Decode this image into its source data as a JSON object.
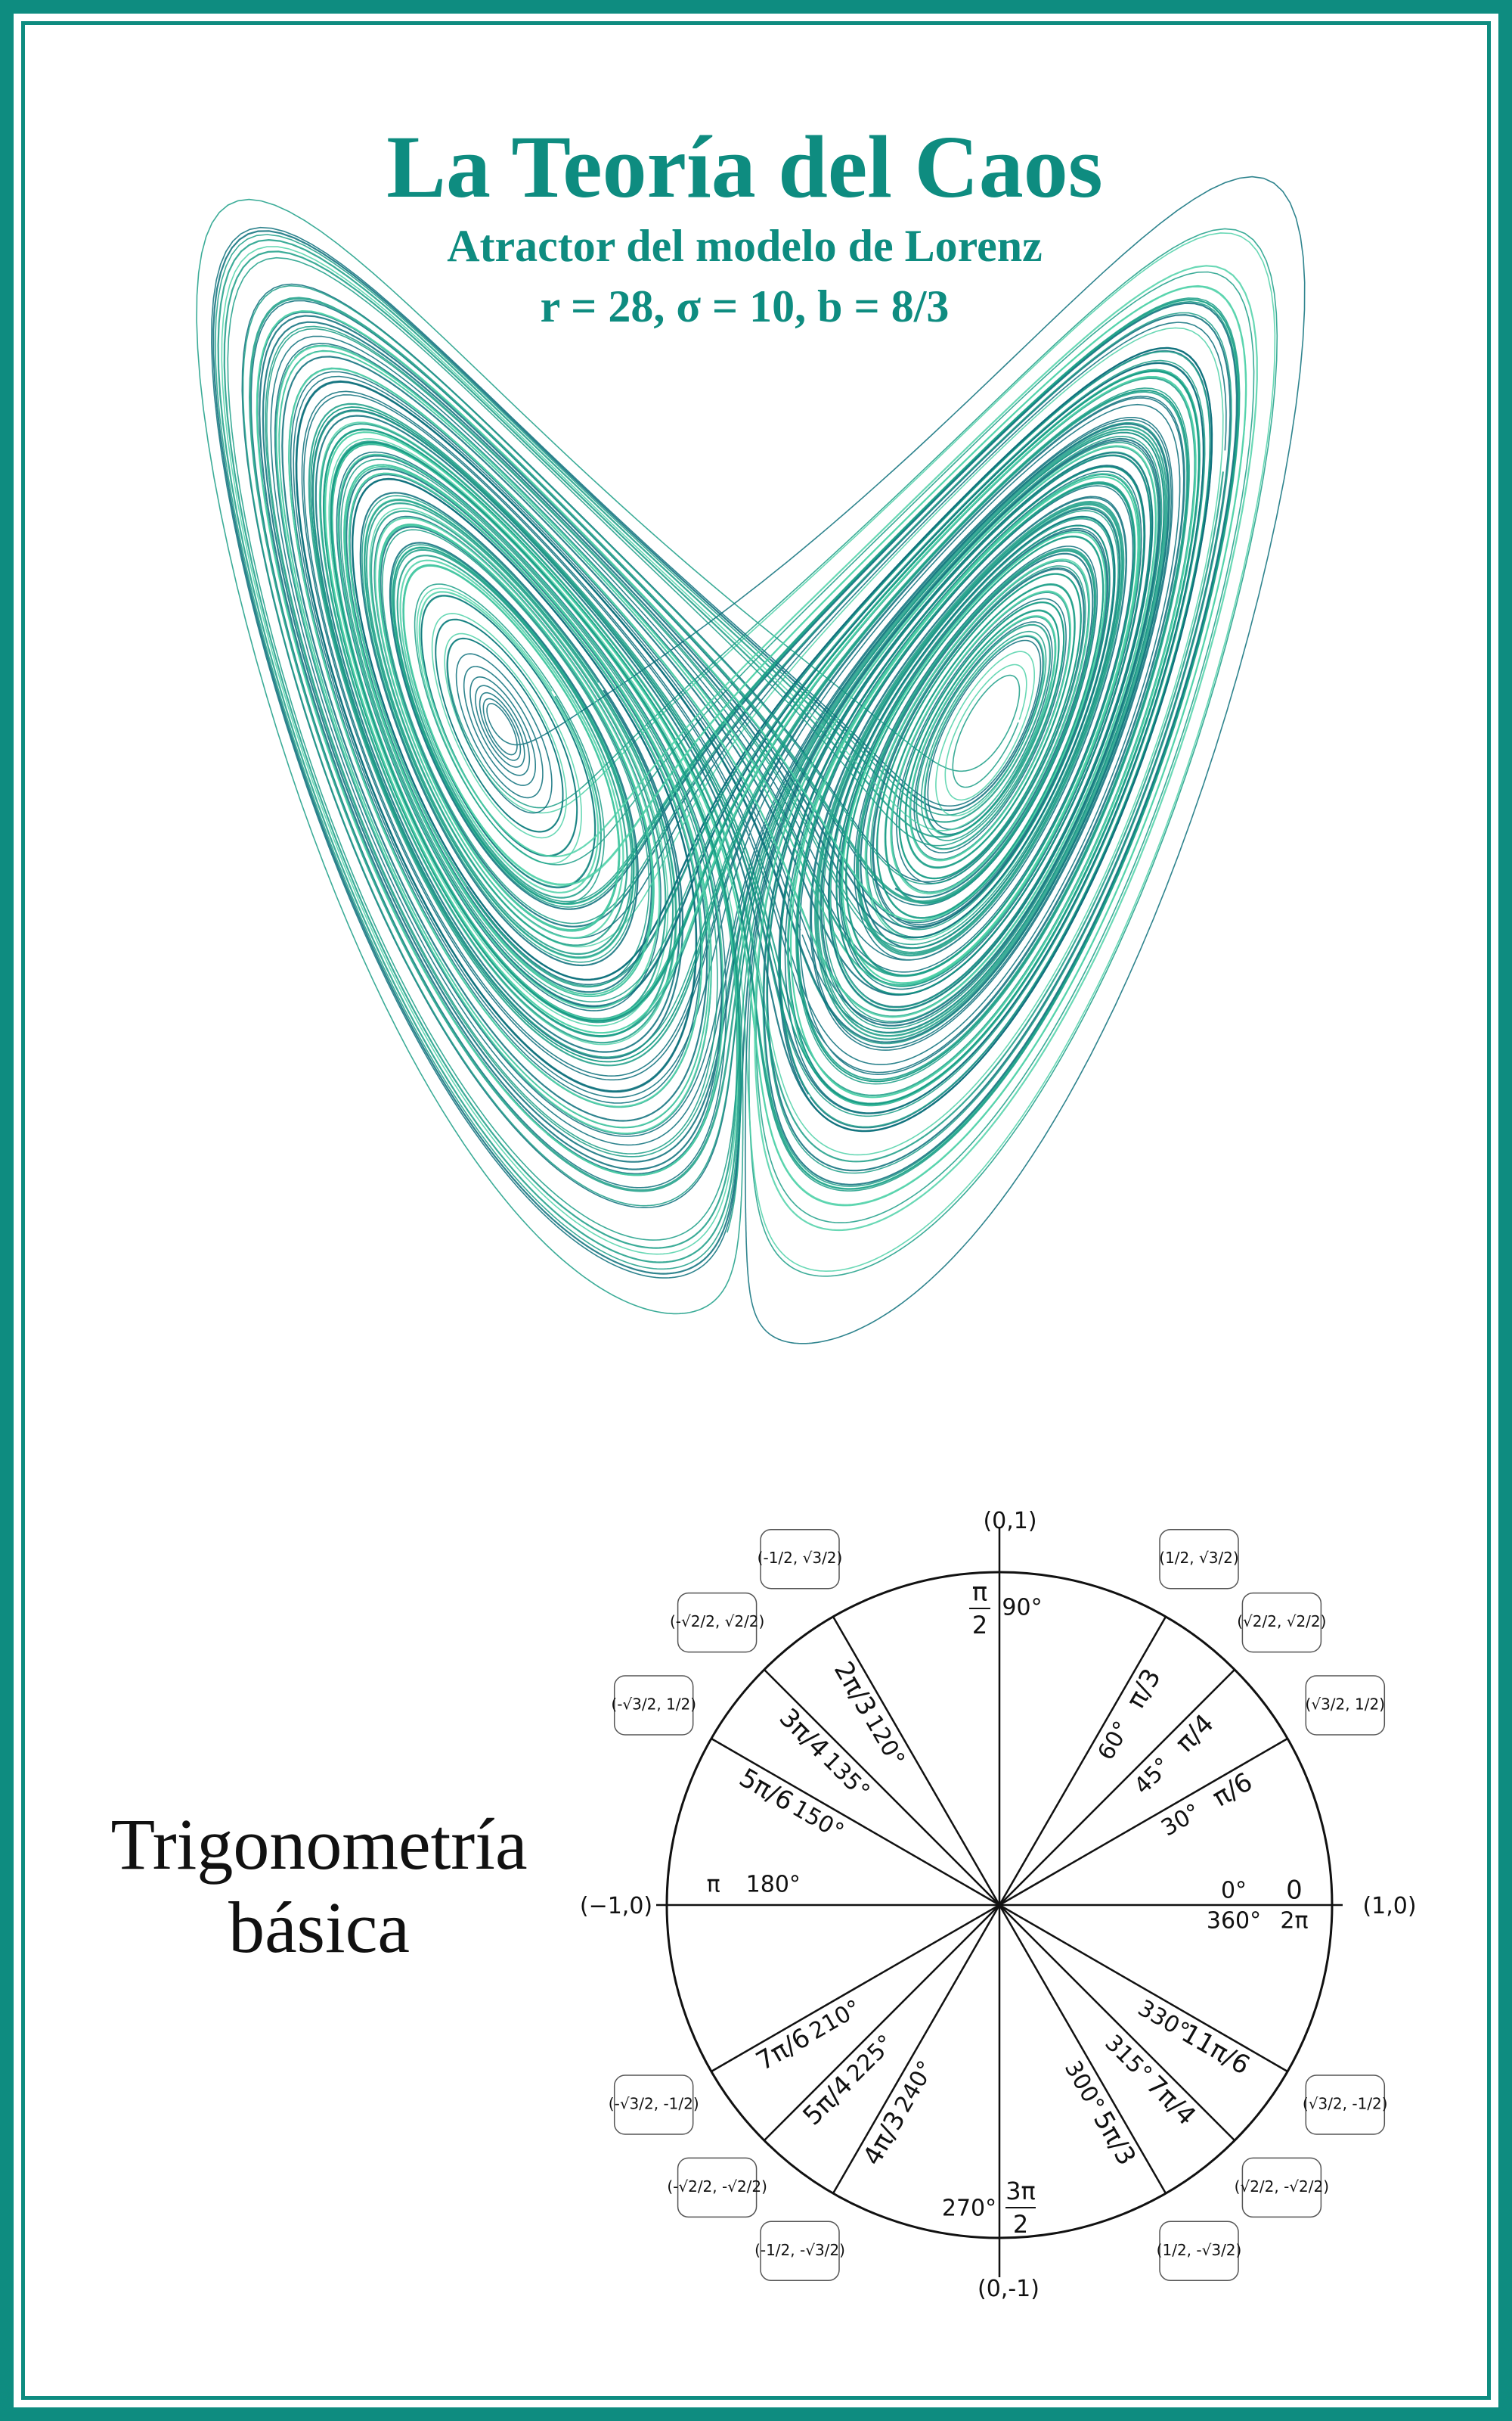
{
  "poster": {
    "title": "La Teoría del Caos",
    "subtitle": "Atractor del modelo de Lorenz",
    "params": "r = 28, σ = 10, b = 8/3",
    "trig_title_line1": "Trigonometría",
    "trig_title_line2": "básica"
  },
  "lorenz": {
    "r": 28,
    "sigma": 10,
    "b": 2.6667
  },
  "colors": {
    "frame": "#0e8c80",
    "title": "#0e8c80",
    "attractor_dark": "#0a6e7a",
    "attractor_mid": "#1a9e86",
    "attractor_light": "#4fd1a8",
    "ink": "#111111"
  },
  "unit_circle": {
    "axis_labels": {
      "top": "(0,1)",
      "bottom": "(0,-1)",
      "left": "(−1,0)",
      "right": "(1,0)"
    },
    "angles": [
      {
        "deg_label": "0°",
        "deg_label2": "360°",
        "rad_num": "0",
        "rad_den": "",
        "rad_label2": "2π",
        "cos": "",
        "sin": ""
      },
      {
        "deg_label": "30°",
        "rad_inline": "π/6",
        "cos": "√3/2",
        "sin": "1/2"
      },
      {
        "deg_label": "45°",
        "rad_inline": "π/4",
        "cos": "√2/2",
        "sin": "√2/2"
      },
      {
        "deg_label": "60°",
        "rad_inline": "π/3",
        "cos": "1/2",
        "sin": "√3/2"
      },
      {
        "deg_label": "90°",
        "rad_num": "π",
        "rad_den": "2",
        "cos": "",
        "sin": ""
      },
      {
        "deg_label": "120°",
        "rad_inline": "2π/3",
        "cos": "-1/2",
        "sin": "√3/2"
      },
      {
        "deg_label": "135°",
        "rad_inline": "3π/4",
        "cos": "-√2/2",
        "sin": "√2/2"
      },
      {
        "deg_label": "150°",
        "rad_inline": "5π/6",
        "cos": "-√3/2",
        "sin": "1/2"
      },
      {
        "deg_label": "180°",
        "rad_inline": "π",
        "cos": "",
        "sin": ""
      },
      {
        "deg_label": "210°",
        "rad_inline": "7π/6",
        "cos": "-√3/2",
        "sin": "-1/2"
      },
      {
        "deg_label": "225°",
        "rad_inline": "5π/4",
        "cos": "-√2/2",
        "sin": "-√2/2"
      },
      {
        "deg_label": "240°",
        "rad_inline": "4π/3",
        "cos": "-1/2",
        "sin": "-√3/2"
      },
      {
        "deg_label": "270°",
        "rad_num": "3π",
        "rad_den": "2",
        "cos": "",
        "sin": ""
      },
      {
        "deg_label": "300°",
        "rad_inline": "5π/3",
        "cos": "1/2",
        "sin": "-√3/2"
      },
      {
        "deg_label": "315°",
        "rad_inline": "7π/4",
        "cos": "√2/2",
        "sin": "-√2/2"
      },
      {
        "deg_label": "330°",
        "rad_inline": "11π/6",
        "cos": "√3/2",
        "sin": "-1/2"
      }
    ]
  }
}
